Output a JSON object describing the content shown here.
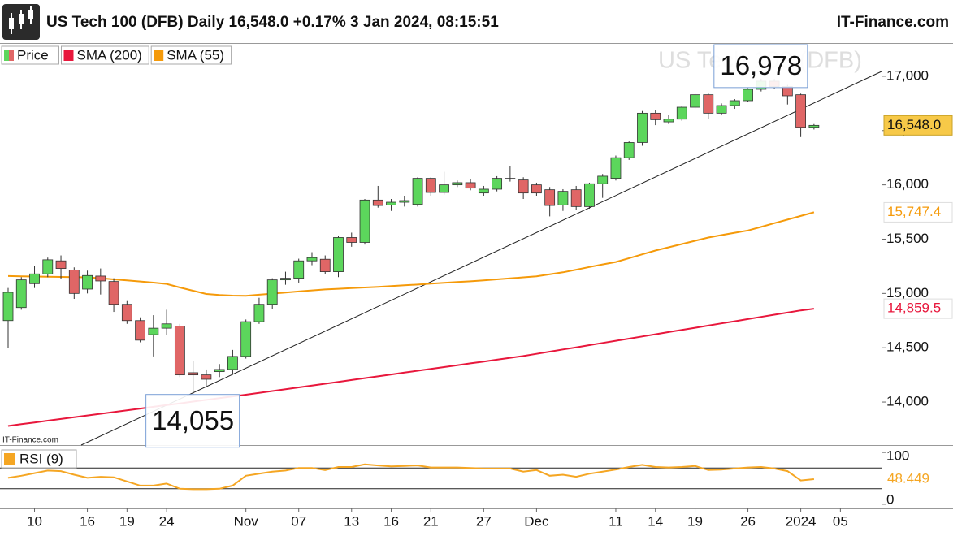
{
  "chart_data": [
    {
      "type": "candlestick",
      "title": "US Tech 100 (DFB) Daily 16,548.0 +0.17% 3 Jan 2024, 08:15:51",
      "site": "IT-Finance.com",
      "watermark": "US Tech 100 (DFB)",
      "source": "IT-Finance.com",
      "categories": [
        null,
        null,
        "10",
        null,
        null,
        null,
        "16",
        null,
        null,
        "19",
        null,
        null,
        "24",
        null,
        null,
        null,
        null,
        null,
        "Nov",
        null,
        null,
        null,
        "07",
        null,
        null,
        null,
        "13",
        null,
        null,
        "16",
        null,
        null,
        "21",
        null,
        null,
        null,
        "27",
        null,
        null,
        null,
        "Dec",
        null,
        null,
        null,
        null,
        null,
        "11",
        null,
        null,
        "14",
        null,
        null,
        "19",
        null,
        null,
        null,
        "26",
        null,
        null,
        null,
        "2024",
        null,
        null,
        "05"
      ],
      "ylim": [
        13604,
        17291
      ],
      "yticks": [
        {
          "value": 14000,
          "label": "14,000"
        },
        {
          "value": 14500,
          "label": "14,500"
        },
        {
          "value": 15000,
          "label": "15,000"
        },
        {
          "value": 15500,
          "label": "15,500"
        },
        {
          "value": 16000,
          "label": "16,000"
        },
        {
          "value": 16500,
          "label": "16,500"
        },
        {
          "value": 17000,
          "label": "17,000"
        }
      ],
      "series": [
        {
          "name": "Price",
          "color_up": "#5cd65c",
          "color_down": "#e06666",
          "last_label": "16,548.0",
          "open": [
            14750,
            14870,
            15090,
            15180,
            15300,
            15215,
            15040,
            15160,
            15110,
            14900,
            14750,
            14620,
            14680,
            14700,
            14270,
            14250,
            14280,
            14300,
            14420,
            14740,
            14900,
            15125,
            15140,
            15300,
            15315,
            15200,
            15515,
            15470,
            15860,
            15815,
            15840,
            15820,
            16060,
            15930,
            16000,
            16020,
            15925,
            15960,
            16055,
            16045,
            16000,
            15955,
            15815,
            15955,
            15800,
            16010,
            16060,
            16250,
            16390,
            16660,
            16580,
            16605,
            16715,
            16830,
            16660,
            16730,
            16775,
            16880,
            16955,
            16905,
            16830,
            16530,
            null,
            null
          ],
          "high": [
            15050,
            15150,
            15250,
            15330,
            15350,
            15240,
            15210,
            15230,
            15140,
            14930,
            14780,
            14800,
            14850,
            14720,
            14380,
            14300,
            14350,
            14480,
            14760,
            14960,
            15140,
            15200,
            15320,
            15380,
            15350,
            15530,
            15560,
            15870,
            15990,
            15870,
            15900,
            16070,
            16070,
            16120,
            16040,
            16050,
            15990,
            16080,
            16170,
            16070,
            16020,
            15980,
            15960,
            15990,
            16020,
            16100,
            16270,
            16400,
            16680,
            16690,
            16640,
            16730,
            16850,
            16850,
            16750,
            16790,
            16890,
            16978,
            16975,
            16920,
            16840,
            16560,
            null,
            null
          ],
          "low": [
            14500,
            14850,
            15050,
            15150,
            15130,
            14950,
            15000,
            14990,
            14830,
            14720,
            14550,
            14420,
            14620,
            14230,
            14055,
            14150,
            14230,
            14250,
            14400,
            14720,
            14860,
            15080,
            15100,
            15260,
            15180,
            15150,
            15430,
            15450,
            15790,
            15760,
            15800,
            15800,
            15900,
            15910,
            15980,
            15950,
            15900,
            15940,
            16030,
            15870,
            15900,
            15710,
            15760,
            15770,
            15780,
            15880,
            16040,
            16230,
            16360,
            16550,
            16560,
            16590,
            16700,
            16610,
            16640,
            16700,
            16760,
            16860,
            16880,
            16740,
            16440,
            16510,
            null,
            null
          ],
          "close": [
            15010,
            15125,
            15180,
            15310,
            15230,
            15000,
            15165,
            15115,
            14900,
            14750,
            14570,
            14680,
            14720,
            14250,
            14250,
            14210,
            14300,
            14420,
            14740,
            14900,
            15125,
            15140,
            15300,
            15330,
            15200,
            15515,
            15470,
            15860,
            15810,
            15840,
            15855,
            16060,
            15930,
            16000,
            16020,
            15970,
            15960,
            16060,
            16060,
            15925,
            15925,
            15810,
            15940,
            15800,
            16010,
            16080,
            16250,
            16390,
            16660,
            16600,
            16605,
            16715,
            16830,
            16660,
            16730,
            16775,
            16880,
            16955,
            16905,
            16820,
            16530,
            16548,
            null,
            null
          ]
        },
        {
          "name": "SMA (200)",
          "color": "#e8173c",
          "last_label": "14,859.5",
          "values": [
            13780,
            13796,
            13812,
            13828,
            13844,
            13860,
            13876,
            13892,
            13908,
            13924,
            13940,
            13956,
            13972,
            13988,
            14004,
            14020,
            14036,
            14052,
            14068,
            14084,
            14101,
            14118,
            14135,
            14152,
            14169,
            14186,
            14203,
            14220,
            14237,
            14254,
            14271,
            14288,
            14305,
            14322,
            14339,
            14356,
            14373,
            14390,
            14407,
            14424,
            14444,
            14464,
            14484,
            14504,
            14524,
            14544,
            14564,
            14584,
            14604,
            14624,
            14644,
            14664,
            14684,
            14704,
            14724,
            14744,
            14764,
            14784,
            14804,
            14824,
            14844,
            14859.5,
            null,
            null
          ]
        },
        {
          "name": "SMA (55)",
          "color": "#f59a0a",
          "last_label": "15,747.4",
          "values": [
            15160,
            15158,
            15156,
            15154,
            15152,
            15150,
            15148,
            15140,
            15130,
            15120,
            15110,
            15100,
            15088,
            15055,
            15025,
            14995,
            14985,
            14980,
            14978,
            14988,
            14998,
            15008,
            15018,
            15028,
            15037,
            15043,
            15049,
            15055,
            15061,
            15068,
            15075,
            15082,
            15090,
            15098,
            15105,
            15112,
            15120,
            15130,
            15139,
            15148,
            15157,
            15176,
            15195,
            15219,
            15243,
            15267,
            15290,
            15325,
            15360,
            15395,
            15425,
            15455,
            15485,
            15515,
            15537,
            15559,
            15580,
            15613,
            15647,
            15680,
            15714,
            15747.4,
            null,
            null
          ]
        }
      ],
      "annotations": [
        {
          "text": "14,055",
          "value": 14055,
          "index": 14
        },
        {
          "text": "16,978",
          "value": 16978,
          "index": 57
        }
      ]
    },
    {
      "type": "line",
      "ylim": [
        -8,
        108
      ],
      "yticks": [
        0,
        100
      ],
      "levels": [
        30,
        70
      ],
      "series": [
        {
          "name": "RSI (9)",
          "color": "#f5a623",
          "last_label": "48.449",
          "values": [
            51,
            55,
            60,
            65,
            64,
            57,
            51,
            53,
            52,
            44,
            36,
            36,
            40,
            30,
            29,
            29,
            30,
            36,
            55,
            59,
            63,
            65,
            70,
            70,
            66,
            72,
            72,
            77,
            75,
            73,
            74,
            75,
            71,
            71,
            71,
            70,
            69,
            69,
            69,
            63,
            66,
            55,
            57,
            53,
            59,
            63,
            67,
            72,
            76,
            72,
            71,
            72,
            74,
            66,
            67,
            69,
            71,
            72,
            69,
            64,
            46,
            48.449,
            null,
            null
          ]
        }
      ]
    }
  ]
}
